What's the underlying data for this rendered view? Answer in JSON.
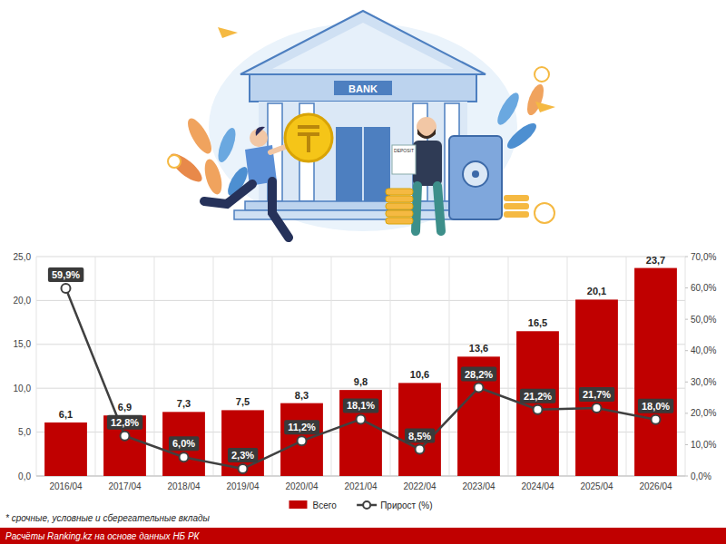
{
  "chart_data": {
    "type": "bar",
    "categories": [
      "2016/04",
      "2017/04",
      "2018/04",
      "2019/04",
      "2020/04",
      "2021/04",
      "2022/04",
      "2023/04",
      "2024/04",
      "2025/04",
      "2026/04"
    ],
    "series": [
      {
        "name": "Всего",
        "type": "bar",
        "color": "#c00000",
        "values": [
          6.1,
          6.9,
          7.3,
          7.5,
          8.3,
          9.8,
          10.6,
          13.6,
          16.5,
          20.1,
          23.7
        ],
        "value_labels": [
          "6,1",
          "6,9",
          "7,3",
          "7,5",
          "8,3",
          "9,8",
          "10,6",
          "13,6",
          "16,5",
          "20,1",
          "23,7"
        ]
      },
      {
        "name": "Прирост (%)",
        "type": "line",
        "axis": "y2",
        "color": "#404040",
        "marker": "circle",
        "values": [
          59.9,
          12.8,
          6.0,
          2.3,
          11.2,
          18.1,
          8.5,
          28.2,
          21.2,
          21.7,
          18.0
        ],
        "value_labels": [
          "59,9%",
          "12,8%",
          "6,0%",
          "2,3%",
          "11,2%",
          "18,1%",
          "8,5%",
          "28,2%",
          "21,2%",
          "21,7%",
          "18,0%"
        ]
      }
    ],
    "ylim": [
      0,
      25
    ],
    "yticks": [
      {
        "value": 0,
        "label": "0,0"
      },
      {
        "value": 5,
        "label": "5,0"
      },
      {
        "value": 10,
        "label": "10,0"
      },
      {
        "value": 15,
        "label": "15,0"
      },
      {
        "value": 20,
        "label": "20,0"
      },
      {
        "value": 25,
        "label": "25,0"
      }
    ],
    "y2lim": [
      0,
      70
    ],
    "y2ticks": [
      {
        "value": 0,
        "label": "0,0%"
      },
      {
        "value": 10,
        "label": "10,0%"
      },
      {
        "value": 20,
        "label": "20,0%"
      },
      {
        "value": 30,
        "label": "30,0%"
      },
      {
        "value": 40,
        "label": "40,0%"
      },
      {
        "value": 50,
        "label": "50,0%"
      },
      {
        "value": 60,
        "label": "60,0%"
      },
      {
        "value": 70,
        "label": "70,0%"
      }
    ],
    "grid": true,
    "legend": "bottom",
    "data_labels": true,
    "footnote": "* срочные, условные и сберегательные вклады",
    "source": "Расчёты Ranking.kz на основе данных НБ РК"
  },
  "illustration": {
    "sign": "BANK",
    "paper": "DEPOSIT"
  }
}
